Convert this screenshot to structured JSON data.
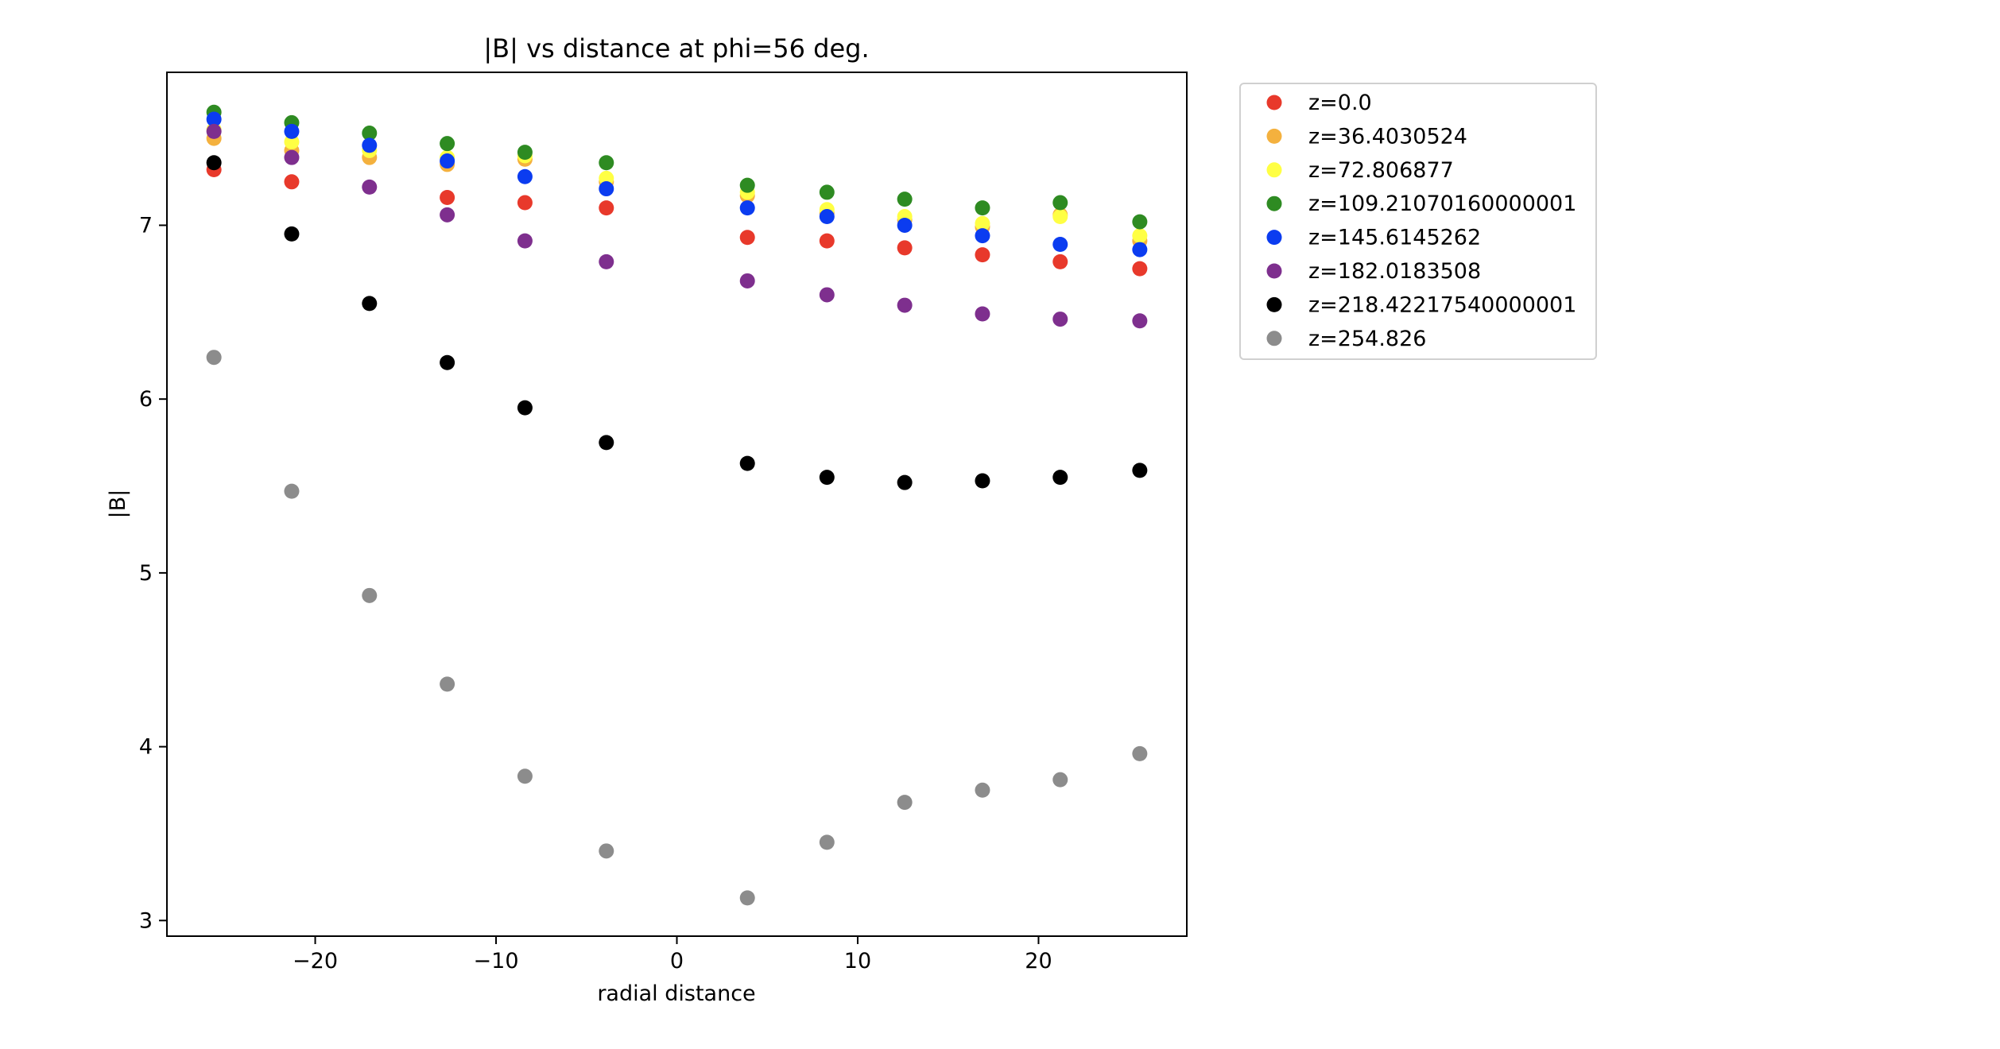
{
  "chart_data": {
    "type": "scatter",
    "title": "|B| vs distance at phi=56 deg.",
    "xlabel": "radial distance",
    "ylabel": "|B|",
    "xlim": [
      -28.2,
      28.2
    ],
    "ylim": [
      2.91,
      7.88
    ],
    "xticks": [
      -20,
      -10,
      0,
      10,
      20
    ],
    "xtick_labels": [
      "−20",
      "−10",
      "0",
      "10",
      "20"
    ],
    "yticks": [
      3,
      4,
      5,
      6,
      7
    ],
    "ytick_labels": [
      "3",
      "4",
      "5",
      "6",
      "7"
    ],
    "grid": false,
    "legend_position": "outside upper right",
    "x": [
      -25.6,
      -21.3,
      -17.0,
      -12.7,
      -8.4,
      -3.9,
      3.9,
      8.3,
      12.6,
      16.9,
      21.2,
      25.6
    ],
    "series": [
      {
        "name": "z=0.0",
        "color": "#e8392b",
        "values": [
          7.32,
          7.25,
          null,
          7.16,
          7.13,
          7.1,
          6.93,
          6.91,
          6.87,
          6.83,
          6.79,
          6.75
        ]
      },
      {
        "name": "z=36.4030524",
        "color": "#f4b13e",
        "values": [
          7.5,
          7.43,
          7.39,
          7.35,
          7.38,
          7.25,
          7.17,
          7.07,
          7.03,
          6.99,
          7.06,
          6.91
        ]
      },
      {
        "name": "z=72.806877",
        "color": "#ffff44",
        "values": [
          7.55,
          7.48,
          7.43,
          7.39,
          7.4,
          7.27,
          7.19,
          7.09,
          7.05,
          7.01,
          7.05,
          6.94
        ]
      },
      {
        "name": "z=109.21070160000001",
        "color": "#2e8b22",
        "values": [
          7.65,
          7.59,
          7.53,
          7.47,
          7.42,
          7.36,
          7.23,
          7.19,
          7.15,
          7.1,
          7.13,
          7.02
        ]
      },
      {
        "name": "z=145.6145262",
        "color": "#0b3cf0",
        "values": [
          7.61,
          7.54,
          7.46,
          7.37,
          7.28,
          7.21,
          7.1,
          7.05,
          7.0,
          6.94,
          6.89,
          6.86
        ]
      },
      {
        "name": "z=182.0183508",
        "color": "#7e2f8e",
        "values": [
          7.54,
          7.39,
          7.22,
          7.06,
          6.91,
          6.79,
          6.68,
          6.6,
          6.54,
          6.49,
          6.46,
          6.45
        ]
      },
      {
        "name": "z=218.42217540000001",
        "color": "#000000",
        "values": [
          7.36,
          6.95,
          6.55,
          6.21,
          5.95,
          5.75,
          5.63,
          5.55,
          5.52,
          5.53,
          5.55,
          5.59
        ]
      },
      {
        "name": "z=254.826",
        "color": "#8c8c8c",
        "values": [
          6.24,
          5.47,
          4.87,
          4.36,
          3.83,
          3.4,
          3.13,
          3.45,
          3.68,
          3.75,
          3.81,
          3.96
        ]
      }
    ]
  }
}
